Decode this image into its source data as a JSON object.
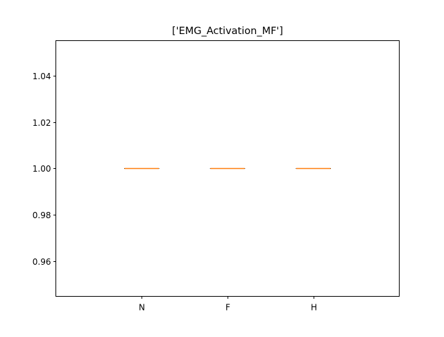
{
  "chart_data": {
    "type": "box",
    "title": "['EMG_Activation_MF']",
    "xlabel": "",
    "ylabel": "",
    "categories": [
      "N",
      "F",
      "H"
    ],
    "boxes": [
      {
        "category": "N",
        "min": 1.0,
        "q1": 1.0,
        "median": 1.0,
        "q3": 1.0,
        "max": 1.0
      },
      {
        "category": "F",
        "min": 1.0,
        "q1": 1.0,
        "median": 1.0,
        "q3": 1.0,
        "max": 1.0
      },
      {
        "category": "H",
        "min": 1.0,
        "q1": 1.0,
        "median": 1.0,
        "q3": 1.0,
        "max": 1.0
      }
    ],
    "ylim": [
      0.945,
      1.055
    ],
    "yticks": [
      0.96,
      0.98,
      1.0,
      1.02,
      1.04
    ],
    "ytick_labels": [
      "0.96",
      "0.98",
      "1.00",
      "1.02",
      "1.04"
    ],
    "grid": false,
    "colors": {
      "box": "#000000",
      "median": "#ff7f0e",
      "axes": "#000000",
      "background": "#ffffff"
    }
  }
}
